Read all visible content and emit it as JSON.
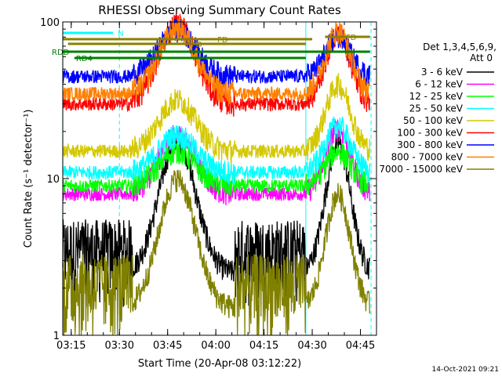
{
  "chart_data": {
    "type": "line",
    "title": "RHESSI Observing Summary Count Rates",
    "xlabel": "Start Time (20-Apr-08 03:12:22)",
    "ylabel": "Count Rate (s⁻¹ detector⁻¹)",
    "y_scale": "log",
    "ylim": [
      1,
      100
    ],
    "xlim": [
      "03:12",
      "04:50"
    ],
    "x_ticks": [
      "03:15",
      "03:30",
      "03:45",
      "04:00",
      "04:15",
      "04:30",
      "04:45"
    ],
    "y_ticks": [
      "1",
      "10",
      "100"
    ],
    "legend_header": [
      "Det 1,3,4,5,6,9,",
      "Att 0"
    ],
    "legend_placement": "right",
    "flags": [
      {
        "label": "N",
        "color": "#00ffff"
      },
      {
        "label": "FD",
        "color": "#8b8000"
      },
      {
        "label": "FD",
        "color": "#8b8000"
      },
      {
        "label": "FD",
        "color": "#8b8000"
      },
      {
        "label": "RDD",
        "color": "#008000"
      },
      {
        "label": "RD4",
        "color": "#008000"
      }
    ],
    "series": [
      {
        "name": "3 - 6 keV",
        "color": "#000000",
        "peaks": [
          18,
          17
        ],
        "trough": 2.5
      },
      {
        "name": "6 - 12 keV",
        "color": "#ff00ff",
        "peaks": [
          19,
          21
        ],
        "trough": 8
      },
      {
        "name": "12 - 25 keV",
        "color": "#00ff00",
        "peaks": [
          15,
          15
        ],
        "trough": 9
      },
      {
        "name": "25 - 50 keV",
        "color": "#00ffff",
        "peaks": [
          19,
          22
        ],
        "trough": 11
      },
      {
        "name": "50 - 100 keV",
        "color": "#d4c800",
        "peaks": [
          32,
          40
        ],
        "trough": 15
      },
      {
        "name": "100 - 300 keV",
        "color": "#ff0000",
        "peaks": [
          98,
          85
        ],
        "trough": 30
      },
      {
        "name": "300 - 800 keV",
        "color": "#0000ff",
        "peaks": [
          90,
          80
        ],
        "trough": 45
      },
      {
        "name": "800 - 7000 keV",
        "color": "#ff8000",
        "peaks": [
          92,
          88
        ],
        "trough": 35
      },
      {
        "name": "7000 - 15000 keV",
        "color": "#808000",
        "peaks": [
          10,
          8
        ],
        "trough": 1.5
      }
    ]
  },
  "footer": {
    "timestamp": "14-Oct-2021 09:21"
  }
}
